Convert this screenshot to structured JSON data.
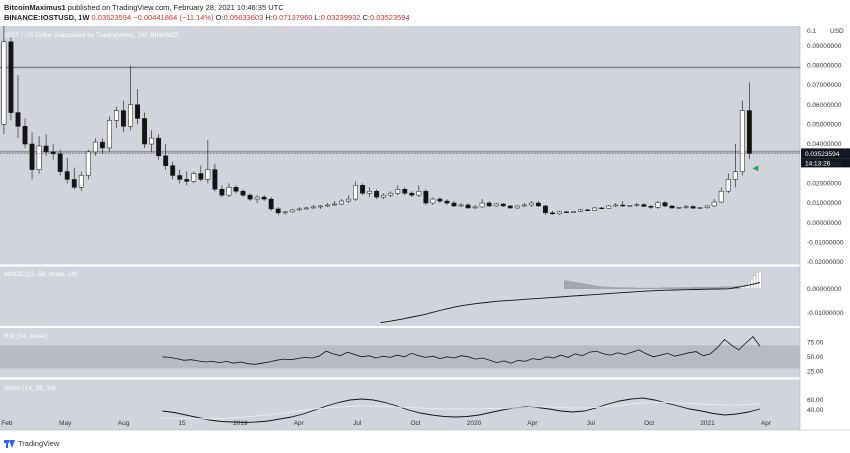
{
  "header": {
    "author": "BitcoinMaximus1",
    "publish_text": "published on TradingView.com, February 28, 2021 10:46:35 UTC",
    "symbol": "BINANCE:IOSTUSD, 1W",
    "last": "0.03523594",
    "change": "−0.00441864 (−11.14%)",
    "ohlc": [
      {
        "label": "O:",
        "value": "0.05633603"
      },
      {
        "label": "H:",
        "value": "0.07137960"
      },
      {
        "label": "L:",
        "value": "0.03239932"
      },
      {
        "label": "C:",
        "value": "0.03523594"
      }
    ]
  },
  "footer": {
    "brand": "TradingView"
  },
  "colors": {
    "bg": "#d1d4dc",
    "bg_band": "#b8bbc4",
    "candle": "#141414",
    "price_tag": "#131722",
    "green_marker": "#26a65b",
    "sep": "#ffffff"
  },
  "chart_data": [
    {
      "type": "candlestick",
      "title": "IOST / US Dollar (calculated by TradingView), 1W, BINANCE",
      "ylim": [
        -0.021,
        0.1
      ],
      "y_tick_labels": [
        "0.09000000",
        "0.08000000",
        "0.07000000",
        "0.06000000",
        "0.05000000",
        "0.04000000",
        "0.03000000",
        "0.02000000",
        "0.01000000",
        "0.00000000",
        "-0.01000000",
        "-0.02000000"
      ],
      "top_label": "0.1",
      "currency_label": "USD",
      "last_price_label": "0.03523594",
      "countdown_label": "14:13:26",
      "horizontal_levels": [
        0.079,
        0.036
      ],
      "x_axis_labels": [
        {
          "label": "Feb",
          "t": 0.3
        },
        {
          "label": "May",
          "t": 3.3
        },
        {
          "label": "Aug",
          "t": 6.3
        },
        {
          "label": "15",
          "t": 9.3
        },
        {
          "label": "2019",
          "t": 12.3
        },
        {
          "label": "Apr",
          "t": 15.3
        },
        {
          "label": "Jul",
          "t": 18.3
        },
        {
          "label": "Oct",
          "t": 21.3
        },
        {
          "label": "2020",
          "t": 24.3
        },
        {
          "label": "Apr",
          "t": 27.3
        },
        {
          "label": "Jul",
          "t": 30.3
        },
        {
          "label": "Oct",
          "t": 33.3
        },
        {
          "label": "2021",
          "t": 36.3
        },
        {
          "label": "Apr",
          "t": 39.3
        }
      ],
      "x_time_range": [
        0,
        41
      ],
      "candles_weekly": [
        [
          0.05,
          0.1,
          0.045,
          0.092
        ],
        [
          0.092,
          0.094,
          0.052,
          0.056
        ],
        [
          0.056,
          0.075,
          0.043,
          0.049
        ],
        [
          0.049,
          0.053,
          0.038,
          0.04
        ],
        [
          0.04,
          0.046,
          0.022,
          0.027
        ],
        [
          0.027,
          0.044,
          0.025,
          0.039
        ],
        [
          0.039,
          0.045,
          0.034,
          0.036
        ],
        [
          0.036,
          0.04,
          0.032,
          0.035
        ],
        [
          0.035,
          0.037,
          0.024,
          0.026
        ],
        [
          0.026,
          0.033,
          0.02,
          0.022
        ],
        [
          0.022,
          0.028,
          0.017,
          0.018
        ],
        [
          0.018,
          0.026,
          0.016,
          0.024
        ],
        [
          0.024,
          0.037,
          0.022,
          0.036
        ],
        [
          0.036,
          0.043,
          0.034,
          0.041
        ],
        [
          0.041,
          0.043,
          0.035,
          0.038
        ],
        [
          0.038,
          0.054,
          0.036,
          0.052
        ],
        [
          0.052,
          0.059,
          0.048,
          0.057
        ],
        [
          0.057,
          0.062,
          0.046,
          0.049
        ],
        [
          0.049,
          0.08,
          0.047,
          0.06
        ],
        [
          0.06,
          0.068,
          0.05,
          0.053
        ],
        [
          0.053,
          0.056,
          0.038,
          0.04
        ],
        [
          0.04,
          0.047,
          0.036,
          0.043
        ],
        [
          0.043,
          0.045,
          0.032,
          0.034
        ],
        [
          0.034,
          0.04,
          0.027,
          0.029
        ],
        [
          0.029,
          0.031,
          0.022,
          0.024
        ],
        [
          0.024,
          0.027,
          0.02,
          0.022
        ],
        [
          0.022,
          0.026,
          0.019,
          0.021
        ],
        [
          0.021,
          0.026,
          0.02,
          0.025
        ],
        [
          0.025,
          0.029,
          0.021,
          0.022
        ],
        [
          0.022,
          0.042,
          0.02,
          0.027
        ],
        [
          0.027,
          0.03,
          0.016,
          0.017
        ],
        [
          0.017,
          0.019,
          0.013,
          0.014
        ],
        [
          0.014,
          0.02,
          0.013,
          0.018
        ],
        [
          0.018,
          0.019,
          0.015,
          0.016
        ],
        [
          0.016,
          0.017,
          0.013,
          0.014
        ],
        [
          0.014,
          0.015,
          0.011,
          0.012
        ],
        [
          0.012,
          0.014,
          0.01,
          0.013
        ],
        [
          0.013,
          0.014,
          0.011,
          0.012
        ],
        [
          0.012,
          0.013,
          0.006,
          0.007
        ],
        [
          0.007,
          0.008,
          0.004,
          0.005
        ],
        [
          0.005,
          0.006,
          0.004,
          0.0055
        ],
        [
          0.0055,
          0.007,
          0.005,
          0.0065
        ],
        [
          0.0065,
          0.008,
          0.006,
          0.007
        ],
        [
          0.007,
          0.008,
          0.0065,
          0.0075
        ],
        [
          0.0075,
          0.009,
          0.007,
          0.008
        ],
        [
          0.008,
          0.009,
          0.007,
          0.0085
        ],
        [
          0.0085,
          0.01,
          0.008,
          0.009
        ],
        [
          0.009,
          0.011,
          0.0085,
          0.0095
        ],
        [
          0.0095,
          0.012,
          0.009,
          0.011
        ],
        [
          0.011,
          0.014,
          0.01,
          0.012
        ],
        [
          0.012,
          0.021,
          0.011,
          0.019
        ],
        [
          0.019,
          0.02,
          0.014,
          0.015
        ],
        [
          0.015,
          0.018,
          0.013,
          0.016
        ],
        [
          0.016,
          0.017,
          0.012,
          0.013
        ],
        [
          0.013,
          0.015,
          0.012,
          0.014
        ],
        [
          0.014,
          0.016,
          0.013,
          0.015
        ],
        [
          0.015,
          0.019,
          0.014,
          0.017
        ],
        [
          0.017,
          0.018,
          0.014,
          0.015
        ],
        [
          0.015,
          0.016,
          0.013,
          0.014
        ],
        [
          0.014,
          0.019,
          0.013,
          0.016
        ],
        [
          0.016,
          0.017,
          0.009,
          0.01
        ],
        [
          0.01,
          0.013,
          0.009,
          0.012
        ],
        [
          0.012,
          0.013,
          0.01,
          0.011
        ],
        [
          0.011,
          0.012,
          0.009,
          0.01
        ],
        [
          0.01,
          0.011,
          0.008,
          0.0085
        ],
        [
          0.0085,
          0.01,
          0.008,
          0.009
        ],
        [
          0.009,
          0.01,
          0.007,
          0.0075
        ],
        [
          0.0075,
          0.009,
          0.007,
          0.008
        ],
        [
          0.008,
          0.012,
          0.0075,
          0.01
        ],
        [
          0.01,
          0.011,
          0.008,
          0.0085
        ],
        [
          0.0085,
          0.01,
          0.008,
          0.0095
        ],
        [
          0.0095,
          0.01,
          0.008,
          0.0085
        ],
        [
          0.0085,
          0.009,
          0.007,
          0.0075
        ],
        [
          0.0075,
          0.009,
          0.007,
          0.0085
        ],
        [
          0.0085,
          0.01,
          0.008,
          0.009
        ],
        [
          0.009,
          0.011,
          0.008,
          0.01
        ],
        [
          0.01,
          0.011,
          0.008,
          0.0085
        ],
        [
          0.0085,
          0.009,
          0.004,
          0.005
        ],
        [
          0.005,
          0.006,
          0.004,
          0.0045
        ],
        [
          0.0045,
          0.006,
          0.004,
          0.0055
        ],
        [
          0.0055,
          0.006,
          0.005,
          0.0052
        ],
        [
          0.0052,
          0.006,
          0.005,
          0.0058
        ],
        [
          0.0058,
          0.007,
          0.0055,
          0.0065
        ],
        [
          0.0065,
          0.007,
          0.006,
          0.0062
        ],
        [
          0.0062,
          0.008,
          0.006,
          0.0075
        ],
        [
          0.0075,
          0.008,
          0.007,
          0.0072
        ],
        [
          0.0072,
          0.009,
          0.007,
          0.0085
        ],
        [
          0.0085,
          0.01,
          0.008,
          0.009
        ],
        [
          0.009,
          0.011,
          0.008,
          0.0085
        ],
        [
          0.0085,
          0.009,
          0.008,
          0.0088
        ],
        [
          0.0088,
          0.01,
          0.008,
          0.0092
        ],
        [
          0.0092,
          0.01,
          0.008,
          0.0083
        ],
        [
          0.0083,
          0.009,
          0.007,
          0.0078
        ],
        [
          0.0078,
          0.011,
          0.007,
          0.0102
        ],
        [
          0.0102,
          0.011,
          0.008,
          0.0085
        ],
        [
          0.0085,
          0.009,
          0.007,
          0.0075
        ],
        [
          0.0075,
          0.008,
          0.007,
          0.0078
        ],
        [
          0.0078,
          0.009,
          0.007,
          0.0082
        ],
        [
          0.0082,
          0.009,
          0.007,
          0.0074
        ],
        [
          0.0074,
          0.008,
          0.007,
          0.0077
        ],
        [
          0.0077,
          0.009,
          0.007,
          0.0085
        ],
        [
          0.0085,
          0.012,
          0.008,
          0.0105
        ],
        [
          0.0105,
          0.018,
          0.01,
          0.016
        ],
        [
          0.016,
          0.025,
          0.015,
          0.022
        ],
        [
          0.022,
          0.04,
          0.018,
          0.026
        ],
        [
          0.026,
          0.062,
          0.024,
          0.057
        ],
        [
          0.057,
          0.0714,
          0.0324,
          0.0352
        ]
      ]
    },
    {
      "type": "line",
      "title": "MACD (21, 50, close, 24)",
      "ylim": [
        -0.015,
        0.009
      ],
      "y_tick_labels": [
        "0.00000000",
        "-0.01000000"
      ],
      "series": [
        {
          "values": [
            -0.014,
            -0.0134,
            -0.0126,
            -0.0117,
            -0.0108,
            -0.0097,
            -0.0086,
            -0.0076,
            -0.0068,
            -0.0062,
            -0.0057,
            -0.0052,
            -0.0049,
            -0.0046,
            -0.0043,
            -0.004,
            -0.0037,
            -0.0034,
            -0.0031,
            -0.0028,
            -0.0025,
            -0.0022,
            -0.0019,
            -0.0016,
            -0.0013,
            -0.001,
            -0.0008,
            -0.0006,
            -0.0005,
            -0.0004,
            -0.0003,
            -0.0002,
            -0.0001,
            0.0,
            0.0007,
            0.0016,
            0.0026
          ]
        }
      ],
      "x_range": [
        19.5,
        39.0
      ],
      "histogram_x_range": [
        29.0,
        39.0
      ],
      "histogram": [
        0.0034,
        0.0032,
        0.003,
        0.0028,
        0.0026,
        0.0024,
        0.0022,
        0.002,
        0.0018,
        0.0016,
        0.0014,
        0.0012,
        0.001,
        0.0009,
        0.0008,
        0.0007,
        0.0006,
        0.0006,
        0.0005,
        0.0005,
        0.0005,
        0.0004,
        0.0004,
        0.0004,
        0.0004,
        0.0004,
        0.0003,
        0.0003,
        0.0003,
        0.0003,
        0.0003,
        0.0003,
        0.0003,
        0.0003,
        0.0003,
        0.0004,
        0.0004,
        0.0004,
        0.0004,
        0.0004,
        0.0005,
        0.0005,
        0.0005,
        0.0005,
        0.0005,
        0.0005,
        0.0005,
        0.0006,
        0.0006,
        0.0006,
        0.0006,
        0.0006,
        0.0006,
        0.0007,
        0.0007,
        0.0007,
        0.0007,
        0.0008,
        0.0008,
        0.0008,
        0.0009,
        0.0009,
        0.001,
        0.0011,
        0.0012,
        0.0014,
        0.0018,
        0.0026,
        0.004,
        0.0055,
        0.0068,
        0.0075
      ]
    },
    {
      "type": "line",
      "title": "RSI (14, close)",
      "ylim": [
        15,
        100
      ],
      "band": [
        30,
        70
      ],
      "y_tick_labels": [
        "75.00",
        "50.00",
        "25.00"
      ],
      "x_range": [
        8.3,
        39.0
      ],
      "series": [
        {
          "values": [
            50,
            49,
            47,
            44,
            45,
            43,
            41,
            42,
            40,
            42,
            39,
            41,
            38,
            37,
            39,
            41,
            44,
            46,
            45,
            47,
            49,
            48,
            51,
            60,
            55,
            52,
            58,
            54,
            50,
            52,
            48,
            51,
            49,
            53,
            50,
            56,
            52,
            49,
            51,
            47,
            50,
            48,
            52,
            50,
            46,
            48,
            44,
            40,
            43,
            39,
            44,
            42,
            47,
            45,
            50,
            48,
            53,
            49,
            55,
            52,
            58,
            60,
            55,
            53,
            57,
            54,
            58,
            62,
            55,
            50,
            53,
            56,
            51,
            54,
            57,
            59,
            52,
            55,
            66,
            80,
            70,
            62,
            74,
            85,
            68
          ]
        }
      ]
    },
    {
      "type": "line",
      "title": "Stoch (14, 28, 14)",
      "ylim": [
        0,
        100
      ],
      "y_tick_labels": [
        "60.00",
        "40.00"
      ],
      "x_range": [
        8.3,
        39.0
      ],
      "series": [
        {
          "values": [
            38,
            35,
            30,
            25,
            20,
            17,
            16,
            15,
            16,
            18,
            22,
            26,
            32,
            40,
            48,
            55,
            60,
            62,
            60,
            55,
            48,
            40,
            34,
            30,
            27,
            26,
            27,
            30,
            35,
            40,
            44,
            46,
            45,
            42,
            38,
            36,
            38,
            44,
            52,
            58,
            62,
            64,
            60,
            54,
            48,
            42,
            38,
            33,
            30,
            32,
            36,
            42
          ]
        },
        {
          "values": [
            24,
            24,
            23,
            23,
            22,
            23,
            24,
            26,
            28,
            30,
            33,
            36,
            39,
            42,
            44,
            46,
            47,
            48,
            48,
            47,
            46,
            45,
            44,
            43,
            42,
            42,
            42,
            42,
            43,
            43,
            44,
            45,
            46,
            46,
            45,
            44,
            44,
            45,
            47,
            49,
            52,
            54,
            55,
            55,
            54,
            53,
            52,
            51,
            50,
            50,
            51,
            53
          ]
        }
      ]
    }
  ]
}
